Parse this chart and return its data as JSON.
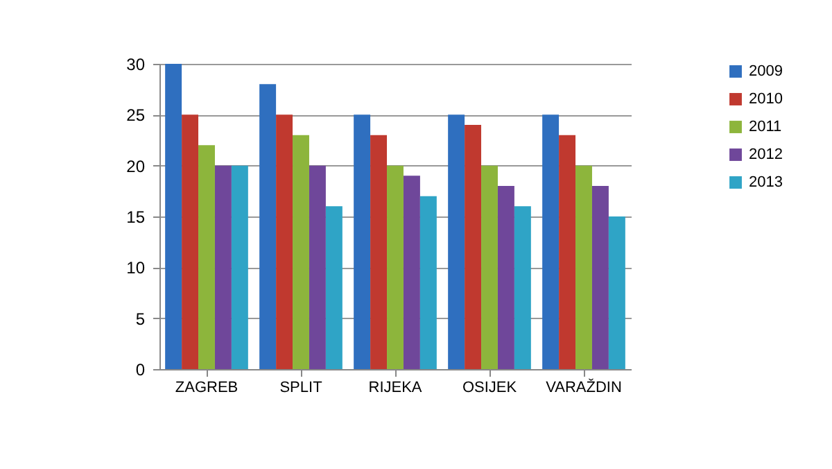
{
  "chart_data": {
    "type": "bar",
    "categories": [
      "ZAGREB",
      "SPLIT",
      "RIJEKA",
      "OSIJEK",
      "VARAŽDIN"
    ],
    "series": [
      {
        "name": "2009",
        "color": "#2f6fbf",
        "values": [
          30,
          28,
          25,
          25,
          25
        ]
      },
      {
        "name": "2010",
        "color": "#c0392f",
        "values": [
          25,
          25,
          23,
          24,
          23
        ]
      },
      {
        "name": "2011",
        "color": "#8db53c",
        "values": [
          22,
          23,
          20,
          20,
          20
        ]
      },
      {
        "name": "2012",
        "color": "#6f479a",
        "values": [
          20,
          20,
          19,
          18,
          18
        ]
      },
      {
        "name": "2013",
        "color": "#2fa4c6",
        "values": [
          20,
          16,
          17,
          16,
          15
        ]
      }
    ],
    "ylim": [
      0,
      30
    ],
    "yticks": [
      0,
      5,
      10,
      15,
      20,
      25,
      30
    ],
    "grid": "y",
    "legend": "right"
  }
}
